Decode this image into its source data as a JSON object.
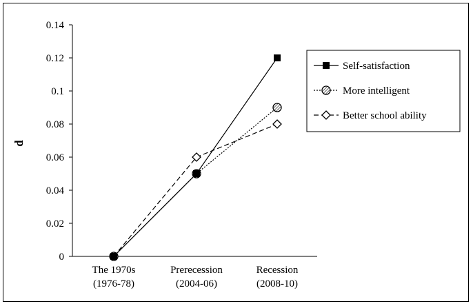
{
  "chart_data": {
    "type": "line",
    "xlabel": "",
    "ylabel": "d",
    "ylim": [
      0,
      0.14
    ],
    "yticks": [
      "0",
      "0.02",
      "0.04",
      "0.06",
      "0.08",
      "0.1",
      "0.12",
      "0.14"
    ],
    "categories": [
      [
        "The 1970s",
        "(1976-78)"
      ],
      [
        "Prerecession",
        "(2004-06)"
      ],
      [
        "Recession",
        "(2008-10)"
      ]
    ],
    "series": [
      {
        "name": "Self-satisfaction",
        "values": [
          0,
          0.05,
          0.12
        ],
        "marker": "square",
        "line": "solid"
      },
      {
        "name": "More intelligent",
        "values": [
          0,
          0.05,
          0.09
        ],
        "marker": "hatched-circle",
        "line": "dotted"
      },
      {
        "name": "Better school ability",
        "values": [
          0,
          0.06,
          0.08
        ],
        "marker": "diamond",
        "line": "dashed"
      }
    ],
    "legend": "right",
    "grid": false
  }
}
